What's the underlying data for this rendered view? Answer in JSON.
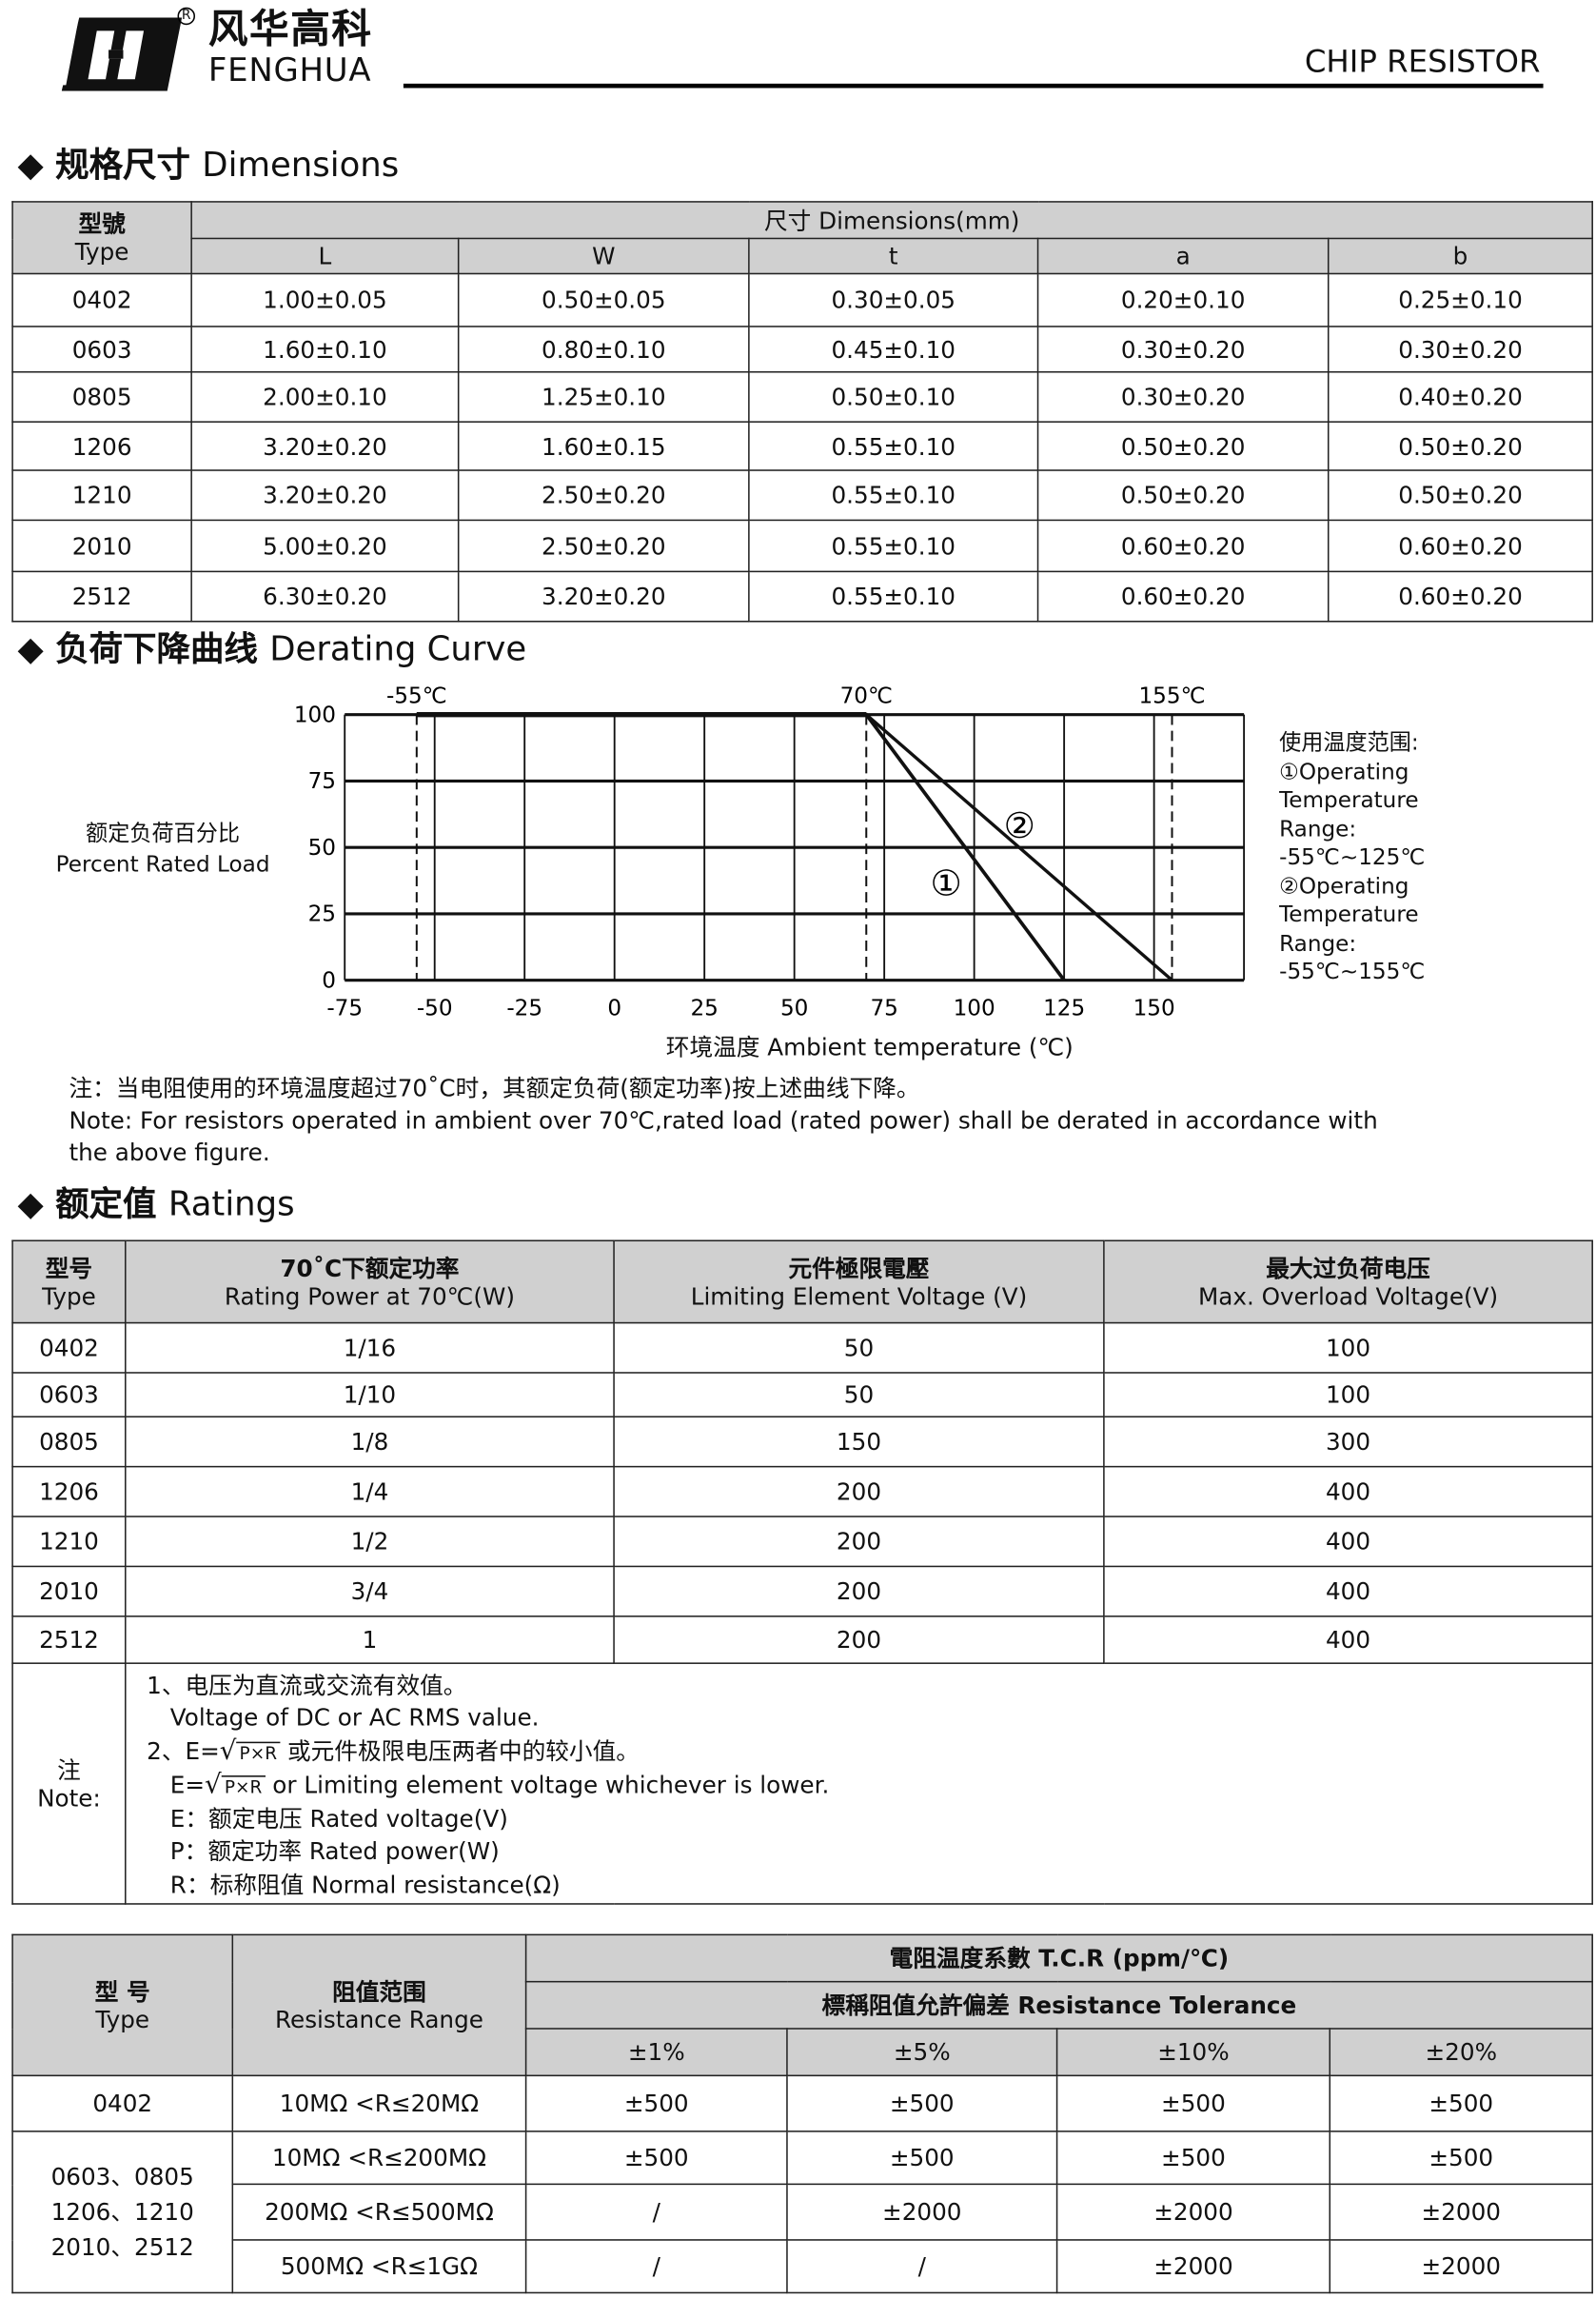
{
  "header": {
    "logo_cn": "风华高科",
    "logo_en": "FENGHUA",
    "registered": "R",
    "doc_title": "CHIP RESISTOR"
  },
  "dimensions": {
    "section_cn": "规格尺寸",
    "section_en": "Dimensions",
    "type_cn": "型號",
    "type_en": "Type",
    "group_header": "尺寸 Dimensions(mm)",
    "columns": [
      "L",
      "W",
      "t",
      "a",
      "b"
    ],
    "rows": [
      [
        "0402",
        "1.00±0.05",
        "0.50±0.05",
        "0.30±0.05",
        "0.20±0.10",
        "0.25±0.10"
      ],
      [
        "0603",
        "1.60±0.10",
        "0.80±0.10",
        "0.45±0.10",
        "0.30±0.20",
        "0.30±0.20"
      ],
      [
        "0805",
        "2.00±0.10",
        "1.25±0.10",
        "0.50±0.10",
        "0.30±0.20",
        "0.40±0.20"
      ],
      [
        "1206",
        "3.20±0.20",
        "1.60±0.15",
        "0.55±0.10",
        "0.50±0.20",
        "0.50±0.20"
      ],
      [
        "1210",
        "3.20±0.20",
        "2.50±0.20",
        "0.55±0.10",
        "0.50±0.20",
        "0.50±0.20"
      ],
      [
        "2010",
        "5.00±0.20",
        "2.50±0.20",
        "0.55±0.10",
        "0.60±0.20",
        "0.60±0.20"
      ],
      [
        "2512",
        "6.30±0.20",
        "3.20±0.20",
        "0.55±0.10",
        "0.60±0.20",
        "0.60±0.20"
      ]
    ]
  },
  "derating": {
    "section_cn": "负荷下降曲线",
    "section_en": "Derating Curve",
    "ylabel_cn": "额定负荷百分比",
    "ylabel_en": "Percent Rated Load",
    "xlabel": "环境温度 Ambient temperature (℃)",
    "legend": [
      "使用温度范围:",
      "①Operating",
      "Temperature",
      "Range:",
      "-55℃~125℃",
      "②Operating",
      "Temperature",
      "Range:",
      "-55℃~155℃"
    ],
    "note_cn": "注：当电阻使用的环境温度超过70˚C时，其额定负荷(额定功率)按上述曲线下降。",
    "note_en1": "Note: For resistors operated in ambient over 70℃,rated  load (rated power) shall be derated in accordance with",
    "note_en2": "the above figure."
  },
  "chart_data": {
    "type": "line",
    "xlabel": "环境温度 Ambient temperature (℃)",
    "ylabel": "额定负荷百分比 Percent Rated Load",
    "xlim": [
      -75,
      175
    ],
    "ylim": [
      0,
      100
    ],
    "xticks": [
      -75,
      -50,
      -25,
      0,
      25,
      50,
      75,
      100,
      125,
      150
    ],
    "yticks": [
      0,
      25,
      50,
      75,
      100
    ],
    "grid": true,
    "markers": [
      {
        "x": -55,
        "label": "-55℃"
      },
      {
        "x": 70,
        "label": "70℃"
      },
      {
        "x": 155,
        "label": "155℃"
      }
    ],
    "series": [
      {
        "name": "①",
        "points": [
          [
            -55,
            100
          ],
          [
            70,
            100
          ],
          [
            125,
            0
          ]
        ]
      },
      {
        "name": "②",
        "points": [
          [
            -55,
            100
          ],
          [
            70,
            100
          ],
          [
            155,
            0
          ]
        ]
      }
    ]
  },
  "ratings": {
    "section_cn": "额定值",
    "section_en": "Ratings",
    "headers": [
      [
        "型号",
        "Type"
      ],
      [
        "70˚C下额定功率",
        "Rating Power at 70℃(W)"
      ],
      [
        "元件極限電壓",
        "Limiting Element Voltage (V)"
      ],
      [
        "最大过负荷电压",
        "Max. Overload Voltage(V)"
      ]
    ],
    "rows": [
      [
        "0402",
        "1/16",
        "50",
        "100"
      ],
      [
        "0603",
        "1/10",
        "50",
        "100"
      ],
      [
        "0805",
        "1/8",
        "150",
        "300"
      ],
      [
        "1206",
        "1/4",
        "200",
        "400"
      ],
      [
        "1210",
        "1/2",
        "200",
        "400"
      ],
      [
        "2010",
        "3/4",
        "200",
        "400"
      ],
      [
        "2512",
        "1",
        "200",
        "400"
      ]
    ],
    "note_label_cn": "注",
    "note_label_en": "Note:",
    "notes": {
      "n1_cn": "1、电压为直流或交流有效值。",
      "n1_en": "Voltage of DC or AC RMS value.",
      "n2_prefix": "2、E=",
      "sqrt_arg": "P×R",
      "n2_cn": " 或元件极限电压两者中的较小值。",
      "n2_en_prefix": "E=",
      "n2_en": " or Limiting element voltage whichever is lower.",
      "e_def": "E：额定电压 Rated voltage(V)",
      "p_def": "P：额定功率 Rated power(W)",
      "r_def": "R：标称阻值 Normal resistance(Ω)"
    }
  },
  "tcr": {
    "type_cn": "型 号",
    "type_en": "Type",
    "range_cn": "阻值范围",
    "range_en": "Resistance Range",
    "tcr_header": "電阻温度系數 T.C.R (ppm/℃)",
    "tol_header": "標稱阻值允許偏差  Resistance Tolerance",
    "tolerances": [
      "±1%",
      "±5%",
      "±10%",
      "±20%"
    ],
    "group1_type": "0402",
    "group2_type": [
      "0603、0805",
      "1206、1210",
      "2010、2512"
    ],
    "rows": [
      [
        "10MΩ <R≤20MΩ",
        "±500",
        "±500",
        "±500",
        "±500"
      ],
      [
        "10MΩ <R≤200MΩ",
        "±500",
        "±500",
        "±500",
        "±500"
      ],
      [
        "200MΩ <R≤500MΩ",
        "/",
        "±2000",
        "±2000",
        "±2000"
      ],
      [
        "500MΩ <R≤1GΩ",
        "/",
        "/",
        "±2000",
        "±2000"
      ]
    ]
  }
}
